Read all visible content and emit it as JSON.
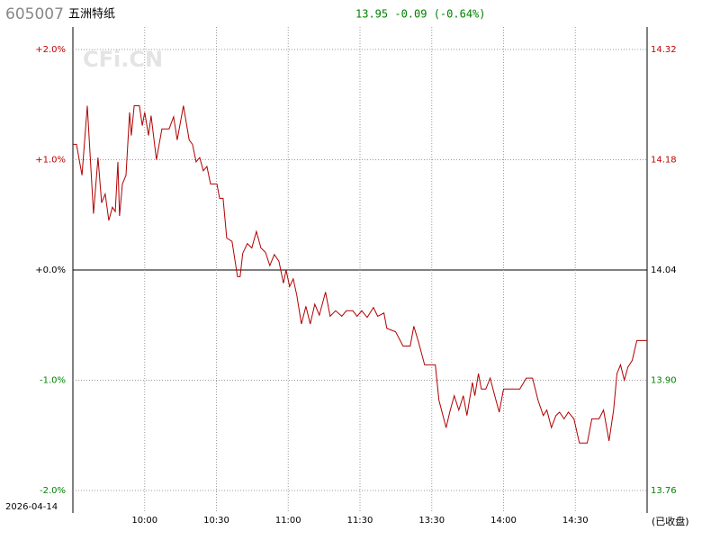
{
  "chart_data": {
    "type": "line",
    "title": "605007",
    "subtitle": "五洲特纸",
    "quote": "13.95 -0.09 (-0.64%)",
    "date": "2026-04-14",
    "status": "(已收盘)",
    "watermark": "CFi.CN",
    "color": "#b00000",
    "up_color": "#c00000",
    "down_color": "#008000",
    "flat_color": "#000000",
    "grid": true,
    "x": [
      0,
      1.5,
      3.8,
      6,
      8.6,
      10.5,
      12,
      13.5,
      15,
      16.5,
      17.7,
      18.8,
      19.5,
      20.7,
      22.2,
      23.7,
      24.4,
      25.6,
      27.8,
      29,
      30,
      31.6,
      32.7,
      34.9,
      37.2,
      40.2,
      42.1,
      43.6,
      46.2,
      48.6,
      50,
      51.5,
      53,
      54.5,
      56,
      57.5,
      60.2,
      61.3,
      62.8,
      64.3,
      66.5,
      68.8,
      69.9,
      71,
      72.9,
      74.8,
      76.7,
      78.6,
      80.5,
      82.3,
      84.2,
      86.1,
      88,
      89.1,
      90.6,
      92.1,
      93.6,
      95.5,
      97.4,
      99.2,
      101.1,
      103,
      105.6,
      107.5,
      109.8,
      112.4,
      114.3,
      117,
      118.8,
      120.7,
      123,
      125.6,
      127.4,
      130,
      131.2,
      134.9,
      138,
      141,
      142.5,
      144.4,
      147,
      150,
      151.5,
      153,
      156,
      157.5,
      159.4,
      161.3,
      163.2,
      164.7,
      167,
      168,
      169.5,
      170.7,
      172.6,
      174.4,
      176.3,
      178.2,
      180,
      186.8,
      189.5,
      192.1,
      194.4,
      196.6,
      198.1,
      200,
      201.9,
      203.4,
      205.3,
      207.1,
      209.4,
      211.7,
      215,
      216.9,
      219.9,
      221.8,
      224.1,
      226,
      227.4,
      228.9,
      230.5,
      232,
      233.8,
      235.7,
      240
    ],
    "values": [
      1.14,
      1.14,
      0.86,
      1.49,
      0.51,
      1.02,
      0.61,
      0.69,
      0.45,
      0.57,
      0.53,
      0.98,
      0.49,
      0.78,
      0.86,
      1.43,
      1.22,
      1.49,
      1.49,
      1.31,
      1.43,
      1.22,
      1.4,
      1.0,
      1.28,
      1.28,
      1.39,
      1.18,
      1.49,
      1.18,
      1.14,
      0.98,
      1.02,
      0.9,
      0.94,
      0.78,
      0.78,
      0.65,
      0.65,
      0.29,
      0.26,
      -0.06,
      -0.06,
      0.15,
      0.24,
      0.2,
      0.35,
      0.2,
      0.16,
      0.04,
      0.14,
      0.08,
      -0.12,
      0,
      -0.15,
      -0.08,
      -0.23,
      -0.49,
      -0.33,
      -0.49,
      -0.31,
      -0.41,
      -0.2,
      -0.42,
      -0.37,
      -0.42,
      -0.37,
      -0.37,
      -0.42,
      -0.37,
      -0.43,
      -0.34,
      -0.42,
      -0.39,
      -0.53,
      -0.56,
      -0.69,
      -0.69,
      -0.51,
      -0.65,
      -0.86,
      -0.86,
      -0.86,
      -1.18,
      -1.43,
      -1.29,
      -1.14,
      -1.27,
      -1.14,
      -1.32,
      -1.02,
      -1.14,
      -0.94,
      -1.08,
      -1.08,
      -0.98,
      -1.14,
      -1.29,
      -1.08,
      -1.08,
      -0.98,
      -0.98,
      -1.18,
      -1.32,
      -1.27,
      -1.43,
      -1.32,
      -1.29,
      -1.35,
      -1.29,
      -1.35,
      -1.57,
      -1.57,
      -1.35,
      -1.35,
      -1.27,
      -1.55,
      -1.27,
      -0.94,
      -0.86,
      -1.0,
      -0.88,
      -0.82,
      -0.64,
      -0.64
    ],
    "xlim": [
      0,
      240
    ],
    "xticks": [
      {
        "value": 30,
        "label": "10:00"
      },
      {
        "value": 60,
        "label": "10:30"
      },
      {
        "value": 90,
        "label": "11:00"
      },
      {
        "value": 120,
        "label": "11:30"
      },
      {
        "value": 150,
        "label": "13:30"
      },
      {
        "value": 180,
        "label": "14:00"
      },
      {
        "value": 210,
        "label": "14:30"
      }
    ],
    "ylim": [
      -2,
      2
    ],
    "yticks": [
      {
        "value": 2,
        "label": "+2.0%"
      },
      {
        "value": 1,
        "label": "+1.0%"
      },
      {
        "value": 0,
        "label": "+0.0%"
      },
      {
        "value": -1,
        "label": "-1.0%"
      },
      {
        "value": -2,
        "label": "-2.0%"
      }
    ],
    "y2lim": [
      13.76,
      14.32
    ],
    "y2ticks": [
      14.32,
      14.18,
      14.04,
      {
        "value": 13.9,
        "label": "13.90"
      },
      13.76
    ]
  }
}
